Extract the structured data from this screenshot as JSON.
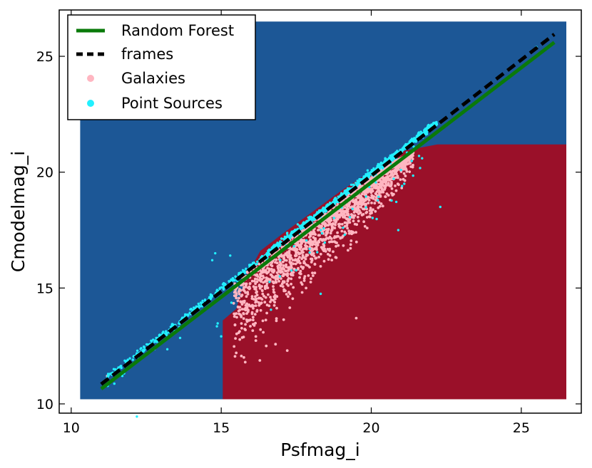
{
  "chart_data": {
    "type": "scatter",
    "title": "",
    "xlabel": "Psfmag_i",
    "ylabel": "Cmodelmag_i",
    "xlim": [
      9.6,
      27.0
    ],
    "ylim": [
      9.6,
      27.0
    ],
    "xticks": [
      10,
      15,
      20,
      25
    ],
    "yticks": [
      10,
      15,
      20,
      25
    ],
    "grid": false,
    "legend_position": "top-left",
    "colors": {
      "region_point_source": "#1c5796",
      "region_galaxy": "#9a1029",
      "random_forest": "#0a7a0a",
      "frames": "#000000",
      "galaxies": "#ffb6c1",
      "point_sources": "#22f0ff"
    },
    "decision_regions": [
      {
        "class": "Point Sources",
        "color": "#1c5796",
        "polygon": [
          [
            10.3,
            10.2
          ],
          [
            26.5,
            10.2
          ],
          [
            26.5,
            26.5
          ],
          [
            10.3,
            26.5
          ]
        ]
      },
      {
        "class": "Galaxies",
        "color": "#9a1029",
        "polygon": [
          [
            15.05,
            10.2
          ],
          [
            26.5,
            10.2
          ],
          [
            26.5,
            21.2
          ],
          [
            22.2,
            21.2
          ],
          [
            21.0,
            20.9
          ],
          [
            19.0,
            19.2
          ],
          [
            17.0,
            17.3
          ],
          [
            16.3,
            16.6
          ],
          [
            15.8,
            15.4
          ],
          [
            15.5,
            14.1
          ],
          [
            15.05,
            13.6
          ]
        ]
      }
    ],
    "series": [
      {
        "name": "Random Forest",
        "kind": "line",
        "style": "solid",
        "color": "#0a7a0a",
        "x": [
          11.0,
          26.1
        ],
        "y": [
          10.65,
          25.6
        ]
      },
      {
        "name": "frames",
        "kind": "line",
        "style": "dashed",
        "color": "#000000",
        "x": [
          11.0,
          26.1
        ],
        "y": [
          10.85,
          25.95
        ]
      },
      {
        "name": "Galaxies",
        "kind": "scatter",
        "color": "#ffb6c1",
        "description": "diagonal band of ~2000 galaxies between x 15 and 21.5 below the line"
      },
      {
        "name": "Point Sources",
        "kind": "scatter",
        "color": "#22f0ff",
        "description": "~1000 point sources lying along the y=x line between x 11 and 25.5"
      }
    ]
  }
}
